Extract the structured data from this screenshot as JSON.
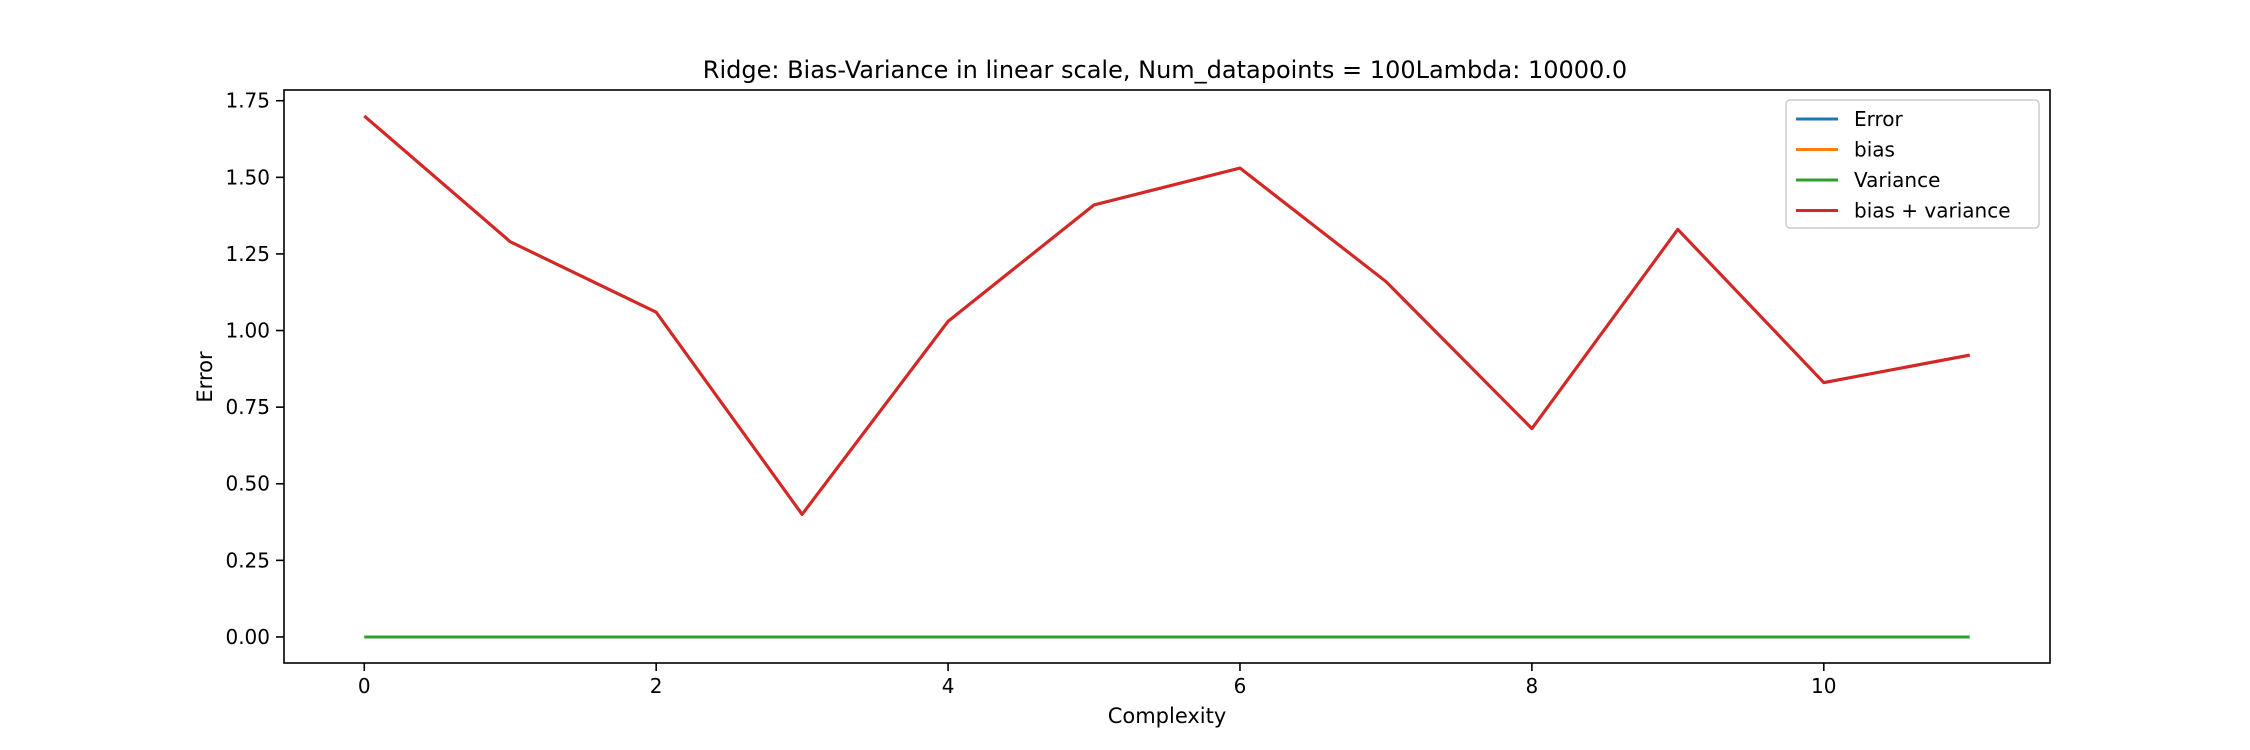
{
  "chart_data": {
    "type": "line",
    "title": "Ridge: Bias-Variance in linear scale, Num_datapoints = 100Lambda: 10000.0",
    "xlabel": "Complexity",
    "ylabel": "Error",
    "xlim": [
      -0.55,
      11.55
    ],
    "ylim": [
      -0.085,
      1.785
    ],
    "xticks": [
      0,
      2,
      4,
      6,
      8,
      10
    ],
    "xtick_labels": [
      "0",
      "2",
      "4",
      "6",
      "8",
      "10"
    ],
    "yticks": [
      0,
      0.25,
      0.5,
      0.75,
      1.0,
      1.25,
      1.5,
      1.75
    ],
    "ytick_labels": [
      "0.00",
      "0.25",
      "0.50",
      "0.75",
      "1.00",
      "1.25",
      "1.50",
      "1.75"
    ],
    "grid": false,
    "legend_position": "top-right",
    "x": [
      0,
      1,
      2,
      3,
      4,
      5,
      6,
      7,
      8,
      9,
      10,
      11
    ],
    "series": [
      {
        "name": "Error",
        "color": "#1f77b4",
        "values": [
          1.7,
          1.29,
          1.06,
          0.4,
          1.03,
          1.41,
          1.53,
          1.16,
          0.68,
          1.33,
          0.83,
          0.92
        ]
      },
      {
        "name": "bias",
        "color": "#ff7f0e",
        "values": [
          1.7,
          1.29,
          1.06,
          0.4,
          1.03,
          1.41,
          1.53,
          1.16,
          0.68,
          1.33,
          0.83,
          0.92
        ]
      },
      {
        "name": "Variance",
        "color": "#2ca02c",
        "values": [
          0,
          0,
          0,
          0,
          0,
          0,
          0,
          0,
          0,
          0,
          0,
          0
        ]
      },
      {
        "name": "bias + variance",
        "color": "#d62728",
        "values": [
          1.7,
          1.29,
          1.06,
          0.4,
          1.03,
          1.41,
          1.53,
          1.16,
          0.68,
          1.33,
          0.83,
          0.92
        ]
      }
    ]
  }
}
